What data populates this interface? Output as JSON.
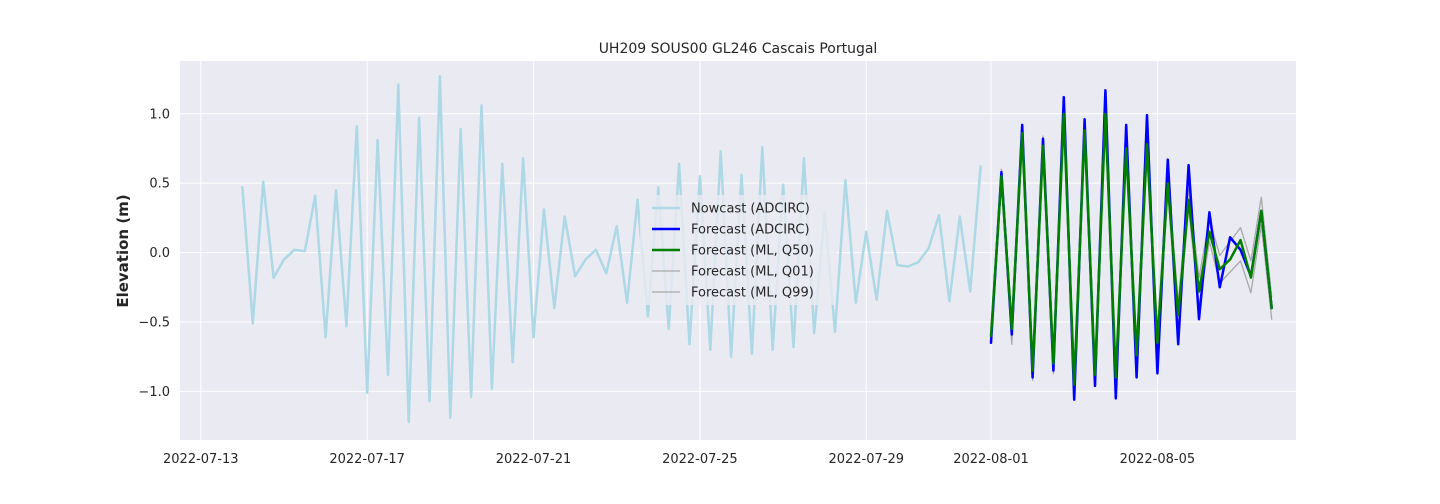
{
  "chart_data": {
    "type": "line",
    "title": "UH209 SOUS00 GL246 Cascais Portugal",
    "xlabel": "",
    "ylabel": "Elevation (m)",
    "x_axis": {
      "type": "date",
      "range": [
        "2022-07-12T12:00",
        "2022-08-08T08:00"
      ],
      "ticks": [
        "2022-07-13",
        "2022-07-17",
        "2022-07-21",
        "2022-07-25",
        "2022-07-29",
        "2022-08-01",
        "2022-08-05"
      ]
    },
    "y_axis": {
      "range": [
        -1.35,
        1.38
      ],
      "ticks": [
        -1.0,
        -0.5,
        0.0,
        0.5,
        1.0
      ],
      "tick_labels": [
        "−1.0",
        "−0.5",
        "0.0",
        "0.5",
        "1.0"
      ]
    },
    "grid": true,
    "legend": "center",
    "colors": {
      "background": "#eaeaf2",
      "grid": "#ffffff"
    },
    "series": [
      {
        "name": "Nowcast (ADCIRC)",
        "color": "#add8e6",
        "width": 2.5,
        "x": [
          "2022-07-14T00:00",
          "2022-07-14T06:00",
          "2022-07-14T12:00",
          "2022-07-14T18:00",
          "2022-07-15T00:00",
          "2022-07-15T06:00",
          "2022-07-15T12:00",
          "2022-07-15T18:00",
          "2022-07-16T00:00",
          "2022-07-16T06:00",
          "2022-07-16T12:00",
          "2022-07-16T18:00",
          "2022-07-17T00:00",
          "2022-07-17T06:00",
          "2022-07-17T12:00",
          "2022-07-17T18:00",
          "2022-07-18T00:00",
          "2022-07-18T06:00",
          "2022-07-18T12:00",
          "2022-07-18T18:00",
          "2022-07-19T00:00",
          "2022-07-19T06:00",
          "2022-07-19T12:00",
          "2022-07-19T18:00",
          "2022-07-20T00:00",
          "2022-07-20T06:00",
          "2022-07-20T12:00",
          "2022-07-20T18:00",
          "2022-07-21T00:00",
          "2022-07-21T06:00",
          "2022-07-21T12:00",
          "2022-07-21T18:00",
          "2022-07-22T00:00",
          "2022-07-22T06:00",
          "2022-07-22T12:00",
          "2022-07-22T18:00",
          "2022-07-23T00:00",
          "2022-07-23T06:00",
          "2022-07-23T12:00",
          "2022-07-23T18:00",
          "2022-07-24T00:00",
          "2022-07-24T06:00",
          "2022-07-24T12:00",
          "2022-07-24T18:00",
          "2022-07-25T00:00",
          "2022-07-25T06:00",
          "2022-07-25T12:00",
          "2022-07-25T18:00",
          "2022-07-26T00:00",
          "2022-07-26T06:00",
          "2022-07-26T12:00",
          "2022-07-26T18:00",
          "2022-07-27T00:00",
          "2022-07-27T06:00",
          "2022-07-27T12:00",
          "2022-07-27T18:00",
          "2022-07-28T00:00",
          "2022-07-28T06:00",
          "2022-07-28T12:00",
          "2022-07-28T18:00",
          "2022-07-29T00:00",
          "2022-07-29T06:00",
          "2022-07-29T12:00",
          "2022-07-29T18:00",
          "2022-07-30T00:00",
          "2022-07-30T06:00",
          "2022-07-30T12:00",
          "2022-07-30T18:00",
          "2022-07-31T00:00",
          "2022-07-31T06:00",
          "2022-07-31T12:00",
          "2022-07-31T18:00"
        ],
        "values": [
          0.47,
          -0.51,
          0.51,
          -0.18,
          -0.05,
          0.02,
          0.01,
          0.41,
          -0.61,
          0.45,
          -0.53,
          0.91,
          -1.01,
          0.81,
          -0.88,
          1.21,
          -1.22,
          0.97,
          -1.07,
          1.27,
          -1.19,
          0.89,
          -1.04,
          1.06,
          -0.98,
          0.64,
          -0.79,
          0.68,
          -0.61,
          0.31,
          -0.4,
          0.26,
          -0.17,
          -0.05,
          0.02,
          -0.15,
          0.19,
          -0.36,
          0.38,
          -0.46,
          0.47,
          -0.55,
          0.64,
          -0.66,
          0.55,
          -0.7,
          0.73,
          -0.75,
          0.56,
          -0.73,
          0.76,
          -0.7,
          0.49,
          -0.68,
          0.68,
          -0.58,
          0.29,
          -0.57,
          0.52,
          -0.36,
          0.15,
          -0.34,
          0.3,
          -0.09,
          -0.1,
          -0.07,
          0.03,
          0.27,
          -0.35,
          0.26,
          -0.28,
          0.62
        ]
      },
      {
        "name": "Forecast (ADCIRC)",
        "color": "#0000ff",
        "width": 2.5,
        "x": [
          "2022-08-01T00:00",
          "2022-08-01T06:00",
          "2022-08-01T12:00",
          "2022-08-01T18:00",
          "2022-08-02T00:00",
          "2022-08-02T06:00",
          "2022-08-02T12:00",
          "2022-08-02T18:00",
          "2022-08-03T00:00",
          "2022-08-03T06:00",
          "2022-08-03T12:00",
          "2022-08-03T18:00",
          "2022-08-04T00:00",
          "2022-08-04T06:00",
          "2022-08-04T12:00",
          "2022-08-04T18:00",
          "2022-08-05T00:00",
          "2022-08-05T06:00",
          "2022-08-05T12:00",
          "2022-08-05T18:00",
          "2022-08-06T00:00",
          "2022-08-06T06:00",
          "2022-08-06T12:00",
          "2022-08-06T18:00",
          "2022-08-07T00:00",
          "2022-08-07T06:00",
          "2022-08-07T12:00",
          "2022-08-07T18:00"
        ],
        "values": [
          -0.65,
          0.58,
          -0.59,
          0.92,
          -0.9,
          0.82,
          -0.85,
          1.12,
          -1.06,
          0.96,
          -0.96,
          1.17,
          -1.05,
          0.92,
          -0.9,
          0.99,
          -0.87,
          0.67,
          -0.66,
          0.63,
          -0.48,
          0.29,
          -0.25,
          0.11,
          0.02,
          -0.17,
          0.3,
          -0.4
        ]
      },
      {
        "name": "Forecast (ML, Q50)",
        "color": "#008000",
        "width": 2.5,
        "x": [
          "2022-08-01T00:00",
          "2022-08-01T06:00",
          "2022-08-01T12:00",
          "2022-08-01T18:00",
          "2022-08-02T00:00",
          "2022-08-02T06:00",
          "2022-08-02T12:00",
          "2022-08-02T18:00",
          "2022-08-03T00:00",
          "2022-08-03T06:00",
          "2022-08-03T12:00",
          "2022-08-03T18:00",
          "2022-08-04T00:00",
          "2022-08-04T06:00",
          "2022-08-04T12:00",
          "2022-08-04T18:00",
          "2022-08-05T00:00",
          "2022-08-05T06:00",
          "2022-08-05T12:00",
          "2022-08-05T18:00",
          "2022-08-06T00:00",
          "2022-08-06T06:00",
          "2022-08-06T12:00",
          "2022-08-06T18:00",
          "2022-08-07T00:00",
          "2022-08-07T06:00",
          "2022-08-07T12:00",
          "2022-08-07T18:00"
        ],
        "values": [
          -0.6,
          0.55,
          -0.55,
          0.86,
          -0.85,
          0.77,
          -0.8,
          1.0,
          -0.95,
          0.88,
          -0.88,
          1.0,
          -0.9,
          0.75,
          -0.74,
          0.78,
          -0.65,
          0.5,
          -0.45,
          0.38,
          -0.28,
          0.15,
          -0.12,
          -0.05,
          0.09,
          -0.18,
          0.3,
          -0.4
        ]
      },
      {
        "name": "Forecast (ML, Q01)",
        "color": "#a9a9a9",
        "width": 1.3,
        "x": [
          "2022-08-01T00:00",
          "2022-08-01T06:00",
          "2022-08-01T12:00",
          "2022-08-01T18:00",
          "2022-08-02T00:00",
          "2022-08-02T06:00",
          "2022-08-02T12:00",
          "2022-08-02T18:00",
          "2022-08-03T00:00",
          "2022-08-03T06:00",
          "2022-08-03T12:00",
          "2022-08-03T18:00",
          "2022-08-04T00:00",
          "2022-08-04T06:00",
          "2022-08-04T12:00",
          "2022-08-04T18:00",
          "2022-08-05T00:00",
          "2022-08-05T06:00",
          "2022-08-05T12:00",
          "2022-08-05T18:00",
          "2022-08-06T00:00",
          "2022-08-06T06:00",
          "2022-08-06T12:00",
          "2022-08-06T18:00",
          "2022-08-07T00:00",
          "2022-08-07T06:00",
          "2022-08-07T12:00",
          "2022-08-07T18:00"
        ],
        "values": [
          -0.62,
          0.5,
          -0.66,
          0.8,
          -0.92,
          0.72,
          -0.87,
          0.92,
          -1.0,
          0.82,
          -0.92,
          0.93,
          -0.95,
          0.7,
          -0.82,
          0.72,
          -0.72,
          0.44,
          -0.55,
          0.32,
          -0.38,
          0.08,
          -0.22,
          -0.14,
          -0.06,
          -0.29,
          0.2,
          -0.48
        ]
      },
      {
        "name": "Forecast (ML, Q99)",
        "color": "#a9a9a9",
        "width": 1.3,
        "x": [
          "2022-08-01T00:00",
          "2022-08-01T06:00",
          "2022-08-01T12:00",
          "2022-08-01T18:00",
          "2022-08-02T00:00",
          "2022-08-02T06:00",
          "2022-08-02T12:00",
          "2022-08-02T18:00",
          "2022-08-03T00:00",
          "2022-08-03T06:00",
          "2022-08-03T12:00",
          "2022-08-03T18:00",
          "2022-08-04T00:00",
          "2022-08-04T06:00",
          "2022-08-04T12:00",
          "2022-08-04T18:00",
          "2022-08-05T00:00",
          "2022-08-05T06:00",
          "2022-08-05T12:00",
          "2022-08-05T18:00",
          "2022-08-06T00:00",
          "2022-08-06T06:00",
          "2022-08-06T12:00",
          "2022-08-06T18:00",
          "2022-08-07T00:00",
          "2022-08-07T06:00",
          "2022-08-07T12:00",
          "2022-08-07T18:00"
        ],
        "values": [
          -0.55,
          0.6,
          -0.5,
          0.92,
          -0.78,
          0.84,
          -0.72,
          1.08,
          -0.86,
          0.94,
          -0.8,
          1.08,
          -0.82,
          0.8,
          -0.64,
          0.86,
          -0.56,
          0.58,
          -0.36,
          0.46,
          -0.18,
          0.24,
          -0.02,
          0.08,
          0.18,
          -0.06,
          0.4,
          -0.32
        ]
      }
    ]
  }
}
